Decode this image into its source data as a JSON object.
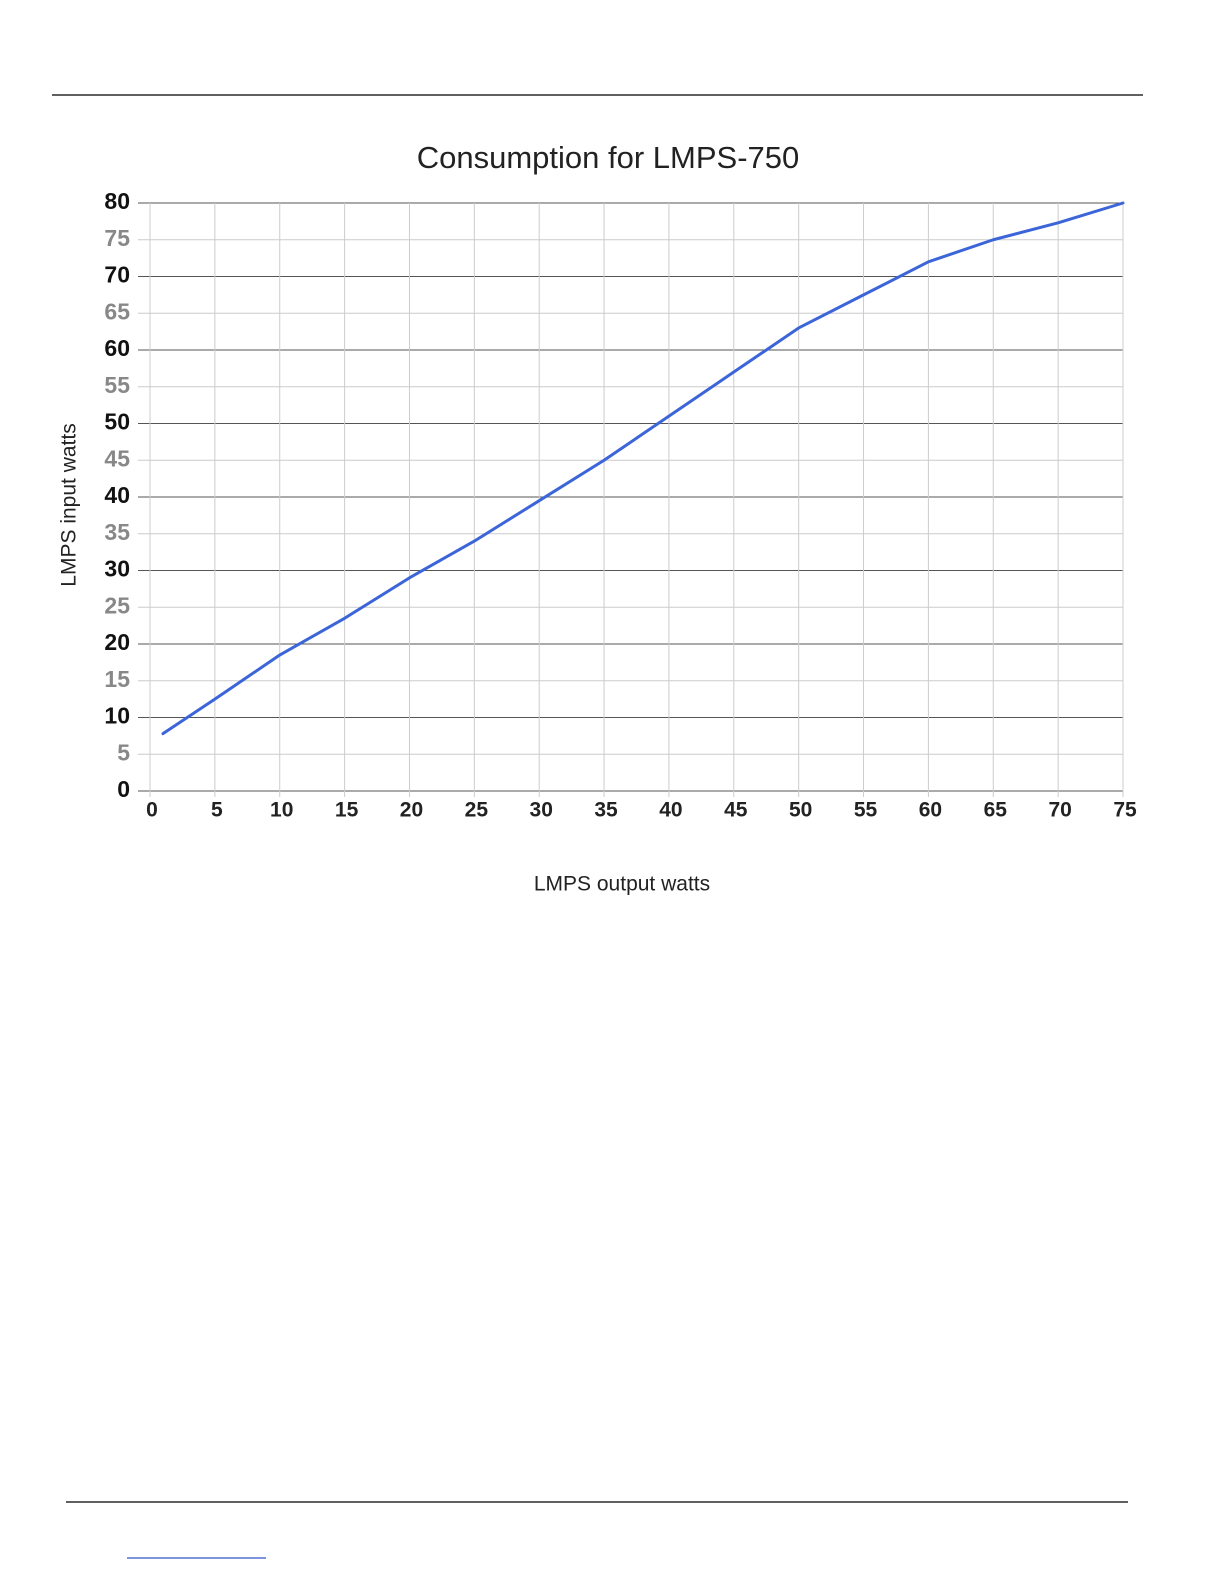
{
  "chart_data": {
    "type": "line",
    "title": "Consumption for LMPS-750",
    "x_label": "LMPS output watts",
    "y_label": "LMPS input watts",
    "x": [
      1,
      5,
      10,
      15,
      20,
      25,
      30,
      35,
      40,
      45,
      50,
      55,
      60,
      65,
      70,
      75
    ],
    "values": [
      7.8,
      12.5,
      18.5,
      23.5,
      29,
      34,
      39.5,
      45,
      51,
      57,
      63,
      67.5,
      72,
      75,
      77.3,
      80
    ],
    "color": "#3b65d8",
    "xlim": [
      0,
      75
    ],
    "xticks": [
      0,
      5,
      10,
      15,
      20,
      25,
      30,
      35,
      40,
      45,
      50,
      55,
      60,
      65,
      70,
      75
    ],
    "ylim": [
      0,
      80
    ],
    "yticks": [
      0,
      5,
      10,
      15,
      20,
      25,
      30,
      35,
      40,
      45,
      50,
      55,
      60,
      65,
      70,
      75,
      80
    ],
    "grid": true
  }
}
